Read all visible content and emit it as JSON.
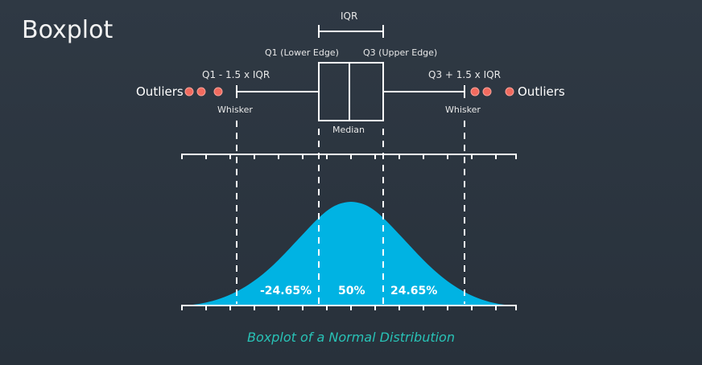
{
  "title": "Boxplot",
  "caption": "Boxplot of a Normal Distribution",
  "labels": {
    "iqr": "IQR",
    "q1": "Q1 (Lower Edge)",
    "q3": "Q3 (Upper Edge)",
    "lower_fence": "Q1 - 1.5 x IQR",
    "upper_fence": "Q3 + 1.5 x IQR",
    "outliers_left": "Outliers",
    "outliers_right": "Outliers",
    "whisker_left": "Whisker",
    "whisker_right": "Whisker",
    "median": "Median"
  },
  "percentages": {
    "left": "-24.65%",
    "center": "50%",
    "right": "24.65%"
  },
  "colors": {
    "curve_fill": "#00b3e3",
    "outlier_dot": "#f26b5f",
    "caption": "#28c2b6",
    "lines": "#ffffff"
  }
}
